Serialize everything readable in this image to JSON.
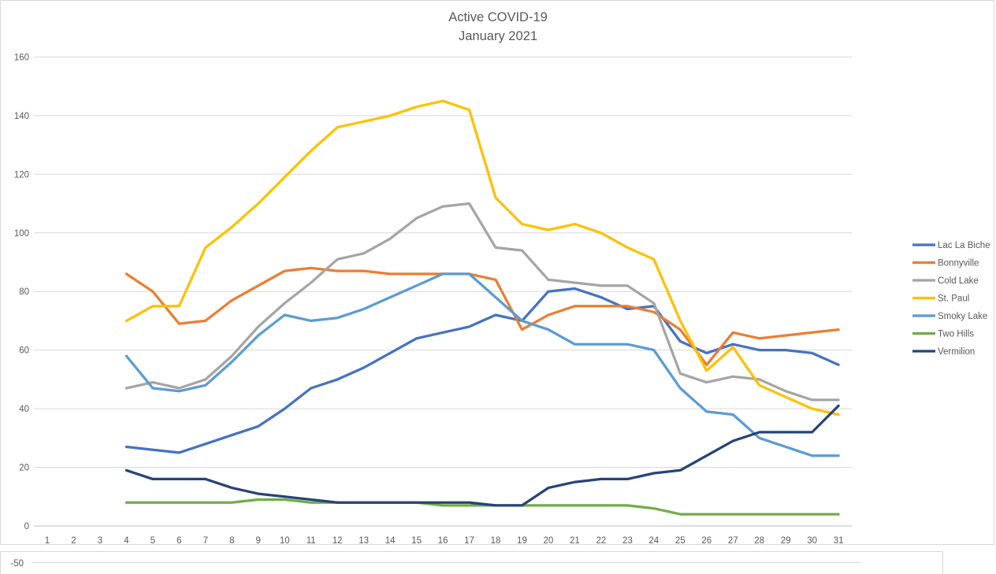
{
  "chart_data": {
    "type": "line",
    "title": "Active COVID-19",
    "subtitle": "January 2021",
    "x": [
      4,
      5,
      6,
      7,
      8,
      9,
      10,
      11,
      12,
      13,
      14,
      15,
      16,
      17,
      18,
      19,
      20,
      21,
      22,
      23,
      24,
      25,
      26,
      27,
      28,
      29,
      30,
      31
    ],
    "x_axis_ticks": [
      "1",
      "2",
      "3",
      "4",
      "5",
      "6",
      "7",
      "8",
      "9",
      "10",
      "11",
      "12",
      "13",
      "14",
      "15",
      "16",
      "17",
      "18",
      "19",
      "20",
      "21",
      "22",
      "23",
      "24",
      "25",
      "26",
      "27",
      "28",
      "29",
      "30",
      "31"
    ],
    "y_axis_ticks": [
      0,
      20,
      40,
      60,
      80,
      100,
      120,
      140,
      160
    ],
    "ylim": [
      0,
      160
    ],
    "grid": true,
    "legend_position": "right",
    "series": [
      {
        "name": "Lac La Biche",
        "color": "#4472C4",
        "values": [
          27,
          26,
          25,
          28,
          31,
          34,
          40,
          47,
          50,
          54,
          59,
          64,
          66,
          68,
          72,
          70,
          80,
          81,
          78,
          74,
          75,
          63,
          59,
          62,
          60,
          60,
          59,
          55
        ]
      },
      {
        "name": "Bonnyville",
        "color": "#ED7D31",
        "values": [
          86,
          80,
          69,
          70,
          77,
          82,
          87,
          88,
          87,
          87,
          86,
          86,
          86,
          86,
          84,
          67,
          72,
          75,
          75,
          75,
          73,
          67,
          55,
          66,
          64,
          65,
          66,
          67
        ]
      },
      {
        "name": "Cold Lake",
        "color": "#A5A5A5",
        "values": [
          47,
          49,
          47,
          50,
          58,
          68,
          76,
          83,
          91,
          93,
          98,
          105,
          109,
          110,
          95,
          94,
          84,
          83,
          82,
          82,
          76,
          52,
          49,
          51,
          50,
          46,
          43,
          43
        ]
      },
      {
        "name": "St. Paul",
        "color": "#FFC000",
        "values": [
          70,
          75,
          75,
          95,
          102,
          110,
          119,
          128,
          136,
          138,
          140,
          143,
          145,
          142,
          112,
          103,
          101,
          103,
          100,
          95,
          91,
          70,
          53,
          61,
          48,
          44,
          40,
          38
        ]
      },
      {
        "name": "Smoky Lake",
        "color": "#5B9BD5",
        "values": [
          58,
          47,
          46,
          48,
          56,
          65,
          72,
          70,
          71,
          74,
          78,
          82,
          86,
          86,
          78,
          70,
          67,
          62,
          62,
          62,
          60,
          47,
          39,
          38,
          30,
          27,
          24,
          24
        ]
      },
      {
        "name": "Two Hills",
        "color": "#70AD47",
        "values": [
          8,
          8,
          8,
          8,
          8,
          9,
          9,
          8,
          8,
          8,
          8,
          8,
          7,
          7,
          7,
          7,
          7,
          7,
          7,
          7,
          6,
          4,
          4,
          4,
          4,
          4,
          4,
          4
        ]
      },
      {
        "name": "Vermilion",
        "color": "#264478",
        "values": [
          19,
          16,
          16,
          16,
          13,
          11,
          10,
          9,
          8,
          8,
          8,
          8,
          8,
          8,
          7,
          7,
          13,
          15,
          16,
          16,
          18,
          19,
          24,
          29,
          32,
          32,
          32,
          41
        ]
      }
    ]
  },
  "partial_chart_below": {
    "tick_label": "-50"
  },
  "style_colors": {
    "gridline": "#D9D9D9",
    "axis_line": "#BFBFBF",
    "text": "#595959",
    "chart_border": "#D9D9D9"
  }
}
